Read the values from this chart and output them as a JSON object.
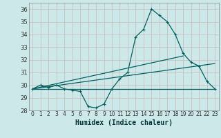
{
  "xlabel": "Humidex (Indice chaleur)",
  "bg_color": "#cce8e8",
  "grid_color": "#c8b8b8",
  "line_color": "#006060",
  "xlim": [
    -0.5,
    23.5
  ],
  "ylim": [
    28.0,
    36.5
  ],
  "yticks": [
    28,
    29,
    30,
    31,
    32,
    33,
    34,
    35,
    36
  ],
  "xticks": [
    0,
    1,
    2,
    3,
    4,
    5,
    6,
    7,
    8,
    9,
    10,
    11,
    12,
    13,
    14,
    15,
    16,
    17,
    18,
    19,
    20,
    21,
    22,
    23
  ],
  "series_main": [
    29.7,
    30.0,
    29.8,
    30.0,
    29.7,
    29.6,
    29.5,
    28.3,
    28.2,
    28.5,
    29.7,
    30.5,
    31.0,
    33.8,
    34.4,
    36.0,
    35.5,
    35.0,
    34.0,
    32.5,
    31.8,
    31.5,
    30.3,
    29.7
  ],
  "series_flat": [
    29.7,
    29.7,
    29.7,
    29.7,
    29.7,
    29.7,
    29.7,
    29.7,
    29.7,
    29.7,
    29.7,
    29.7,
    29.7,
    29.7,
    29.7,
    29.7,
    29.7,
    29.7,
    29.7,
    29.7,
    29.7,
    29.7,
    29.7,
    29.7
  ],
  "trend1_x": [
    0,
    19
  ],
  "trend1_y": [
    29.7,
    32.3
  ],
  "trend2_x": [
    0,
    23
  ],
  "trend2_y": [
    29.7,
    31.7
  ]
}
